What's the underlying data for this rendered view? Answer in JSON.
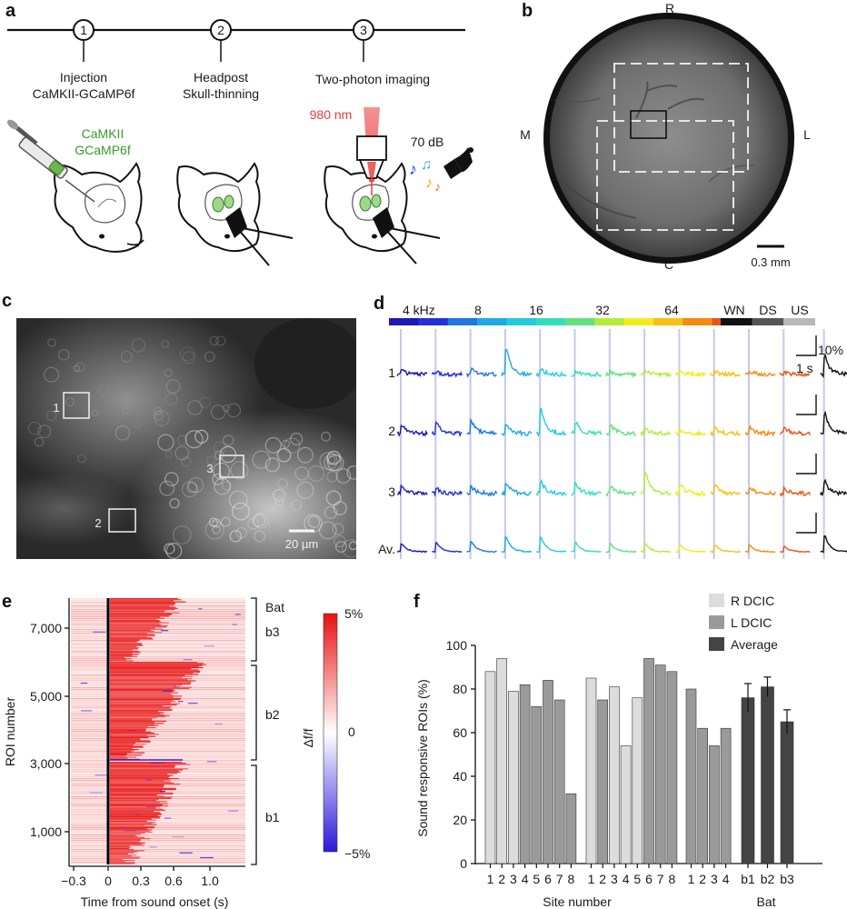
{
  "panel_a": {
    "letter": "a",
    "steps": [
      {
        "num": "1",
        "title": "Injection",
        "subtitle": "CaMKII-GCaMP6f"
      },
      {
        "num": "2",
        "title": "Headpost",
        "subtitle": "Skull-thinning"
      },
      {
        "num": "3",
        "title": "Two-photon imaging",
        "subtitle": ""
      }
    ],
    "virus_line1": "CaMKII",
    "virus_line2": "GCaMP6f",
    "laser_label": "980 nm",
    "sound_label": "70 dB",
    "colors": {
      "virus": "#3a9a2a",
      "laser": "#e83a3a",
      "notes": [
        "#1a3fd0",
        "#2ab0e0",
        "#f4a020",
        "#e8701a"
      ]
    }
  },
  "panel_b": {
    "letter": "b",
    "orient_top": "R",
    "orient_left": "M",
    "orient_right": "L",
    "orient_bottom": "C",
    "scale_label": "0.3 mm"
  },
  "panel_c": {
    "letter": "c",
    "roi_labels": [
      "1",
      "2",
      "3"
    ],
    "scale_label": "20 µm"
  },
  "panel_d": {
    "letter": "d",
    "freq_labels": [
      "4 kHz",
      "8",
      "16",
      "32",
      "64"
    ],
    "extra_labels": [
      "WN",
      "DS",
      "US"
    ],
    "row_labels": [
      "1",
      "2",
      "3",
      "Av."
    ],
    "scale_y": "10%",
    "scale_x": "1 s",
    "stim_colors": [
      "#1c1ab0",
      "#2430d8",
      "#1e78e0",
      "#1ea8e8",
      "#22ccdd",
      "#34dcbc",
      "#62e084",
      "#b4ea3a",
      "#f2ec1a",
      "#f8c016",
      "#f48a12",
      "#e85418",
      "#111111",
      "#555555",
      "#b8b8b8"
    ],
    "peak_strength": {
      "row1": [
        0.15,
        0.1,
        0.2,
        1.0,
        0.2,
        0.1,
        0.1,
        0.1,
        0.1,
        0.1,
        0.1,
        0.1,
        0.7,
        0.35,
        0.3
      ],
      "row2": [
        0.35,
        0.4,
        0.5,
        0.4,
        0.95,
        0.45,
        0.3,
        0.2,
        0.15,
        0.2,
        0.25,
        0.2,
        0.75,
        0.6,
        0.55
      ],
      "row3": [
        0.3,
        0.2,
        0.25,
        0.4,
        0.45,
        0.35,
        0.3,
        0.85,
        0.35,
        0.3,
        0.2,
        0.2,
        0.45,
        0.55,
        0.5
      ],
      "avg": [
        0.3,
        0.35,
        0.4,
        0.55,
        0.55,
        0.35,
        0.3,
        0.3,
        0.25,
        0.25,
        0.25,
        0.2,
        0.6,
        0.45,
        0.35
      ]
    }
  },
  "panel_e": {
    "letter": "e",
    "ylabel": "ROI number",
    "xlabel": "Time from sound onset (s)",
    "yticks": [
      "1,000",
      "3,000",
      "5,000",
      "7,000"
    ],
    "xticks": [
      "−0.3",
      "0",
      "0.3",
      "0.6",
      "1.0"
    ],
    "group_labels": [
      "Bat",
      "b3",
      "b2",
      "b1"
    ],
    "colorbar_label": "Δf/f",
    "colorbar_ticks": [
      "5%",
      "0",
      "−5%"
    ],
    "colors": {
      "high": "#e81010",
      "low": "#2a18d8"
    }
  },
  "chart_data": {
    "type": "bar",
    "panel_letter": "f",
    "ylabel": "Sound responsive ROIs (%)",
    "xlabel": "Site number",
    "bat_label": "Bat",
    "ylim": [
      0,
      100
    ],
    "yticks": [
      "0",
      "20",
      "40",
      "60",
      "80",
      "100"
    ],
    "legend": [
      {
        "name": "R DCIC",
        "color": "#dcdcdc"
      },
      {
        "name": "L DCIC",
        "color": "#9a9a9a"
      },
      {
        "name": "Average",
        "color": "#444444"
      }
    ],
    "groups": [
      {
        "categories": [
          "1",
          "2",
          "3",
          "4",
          "5",
          "6",
          "7",
          "8"
        ],
        "values": [
          88,
          94,
          79,
          82,
          72,
          84,
          75,
          32
        ],
        "kind": [
          "R DCIC",
          "R DCIC",
          "R DCIC",
          "L DCIC",
          "L DCIC",
          "L DCIC",
          "L DCIC",
          "L DCIC"
        ]
      },
      {
        "categories": [
          "1",
          "2",
          "3",
          "4",
          "5",
          "6",
          "7",
          "8"
        ],
        "values": [
          85,
          75,
          81,
          54,
          76,
          94,
          91,
          88
        ],
        "kind": [
          "R DCIC",
          "L DCIC",
          "R DCIC",
          "R DCIC",
          "R DCIC",
          "L DCIC",
          "L DCIC",
          "L DCIC"
        ]
      },
      {
        "categories": [
          "1",
          "2",
          "3",
          "4"
        ],
        "values": [
          80,
          62,
          54,
          62
        ],
        "kind": [
          "L DCIC",
          "L DCIC",
          "L DCIC",
          "L DCIC"
        ]
      },
      {
        "categories": [
          "b1",
          "b2",
          "b3"
        ],
        "values": [
          76,
          81,
          65
        ],
        "errors": [
          6.5,
          4.5,
          5.5
        ],
        "kind": [
          "Average",
          "Average",
          "Average"
        ]
      }
    ]
  }
}
